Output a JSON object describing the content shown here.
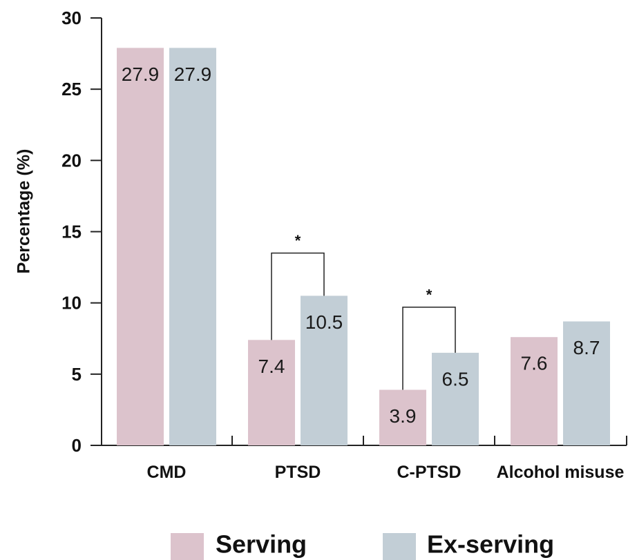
{
  "chart_data": {
    "type": "bar",
    "title": "",
    "xlabel": "",
    "ylabel": "Percentage (%)",
    "ylim": [
      0,
      30
    ],
    "yticks": [
      0,
      5,
      10,
      15,
      20,
      25,
      30
    ],
    "categories": [
      "CMD",
      "PTSD",
      "C-PTSD",
      "Alcohol misuse"
    ],
    "series": [
      {
        "name": "Serving",
        "color": "#dcc3cc",
        "values": [
          27.9,
          7.4,
          3.9,
          7.6
        ]
      },
      {
        "name": "Ex-serving",
        "color": "#c2ced6",
        "values": [
          27.9,
          10.5,
          6.5,
          8.7
        ]
      }
    ],
    "value_labels": [
      [
        "27.9",
        "7.4",
        "3.9",
        "7.6"
      ],
      [
        "27.9",
        "10.5",
        "6.5",
        "8.7"
      ]
    ],
    "significance": [
      {
        "category": "PTSD",
        "label": "*",
        "level": 13.5
      },
      {
        "category": "C-PTSD",
        "label": "*",
        "level": 9.7
      }
    ],
    "grid": false,
    "legend_position": "bottom-center"
  }
}
